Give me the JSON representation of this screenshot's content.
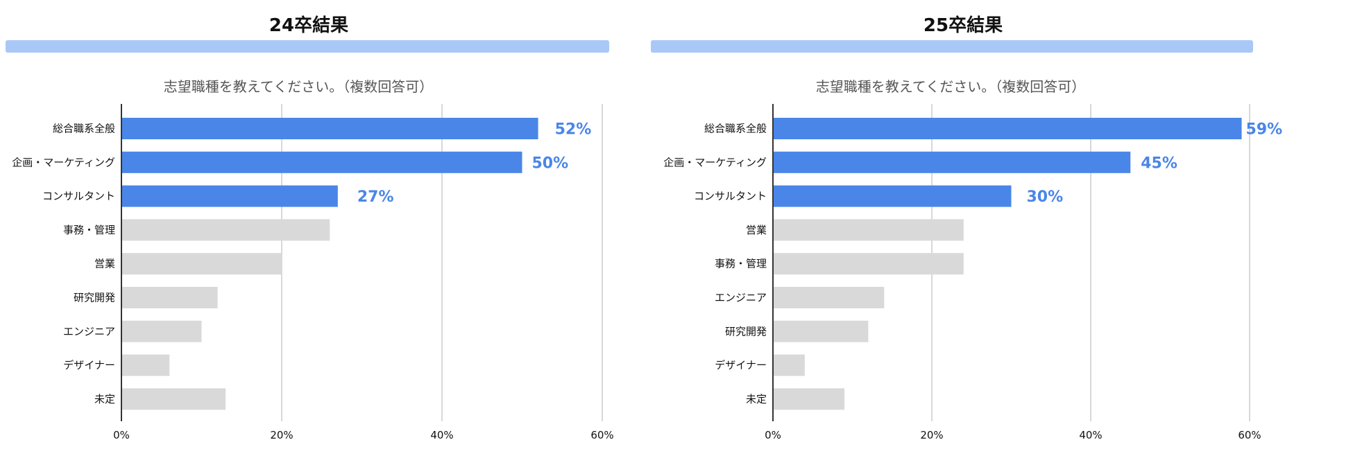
{
  "colors": {
    "highlight": "#4A86E8",
    "muted": "#D9D9D9",
    "accent_bar": "#A9C8F7",
    "grid": "#CCCCCC",
    "axis": "#333333",
    "label_value": "#4A86E8"
  },
  "panels": [
    {
      "title": "24卒結果"
    },
    {
      "title": "25卒結果"
    }
  ],
  "chart_data": [
    {
      "type": "bar",
      "orientation": "horizontal",
      "title": "志望職種を教えてください。（複数回答可）",
      "categories": [
        "総合職系全般",
        "企画・マーケティング",
        "コンサルタント",
        "事務・管理",
        "営業",
        "研究開発",
        "エンジニア",
        "デザイナー",
        "未定"
      ],
      "values": [
        52,
        50,
        27,
        26,
        20,
        12,
        10,
        6,
        13
      ],
      "highlighted": [
        true,
        true,
        true,
        false,
        false,
        false,
        false,
        false,
        false
      ],
      "data_labels": [
        "52%",
        "50%",
        "27%",
        null,
        null,
        null,
        null,
        null,
        null
      ],
      "xlim": [
        0,
        60
      ],
      "xticks": [
        0,
        20,
        40,
        60
      ],
      "xtick_labels": [
        "0%",
        "20%",
        "40%",
        "60%"
      ],
      "grid": true
    },
    {
      "type": "bar",
      "orientation": "horizontal",
      "title": "志望職種を教えてください。（複数回答可）",
      "categories": [
        "総合職系全般",
        "企画・マーケティング",
        "コンサルタント",
        "営業",
        "事務・管理",
        "エンジニア",
        "研究開発",
        "デザイナー",
        "未定"
      ],
      "values": [
        59,
        45,
        30,
        24,
        24,
        14,
        12,
        4,
        9
      ],
      "highlighted": [
        true,
        true,
        true,
        false,
        false,
        false,
        false,
        false,
        false
      ],
      "data_labels": [
        "59%",
        "45%",
        "30%",
        null,
        null,
        null,
        null,
        null,
        null
      ],
      "xlim": [
        0,
        60
      ],
      "xticks": [
        0,
        20,
        40,
        60
      ],
      "xtick_labels": [
        "0%",
        "20%",
        "40%",
        "60%"
      ],
      "grid": true
    }
  ]
}
